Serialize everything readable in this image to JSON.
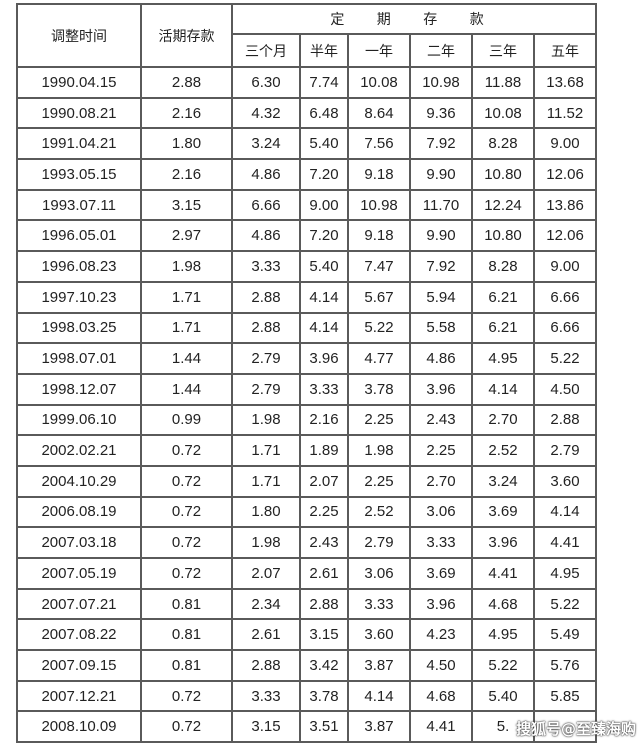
{
  "table": {
    "headers": {
      "date": "调整时间",
      "demand": "活期存款",
      "fixed_group": "定 期 存 款",
      "terms": [
        "三个月",
        "半年",
        "一年",
        "二年",
        "三年",
        "五年"
      ]
    },
    "rows": [
      [
        "1990.04.15",
        "2.88",
        "6.30",
        "7.74",
        "10.08",
        "10.98",
        "11.88",
        "13.68"
      ],
      [
        "1990.08.21",
        "2.16",
        "4.32",
        "6.48",
        "8.64",
        "9.36",
        "10.08",
        "11.52"
      ],
      [
        "1991.04.21",
        "1.80",
        "3.24",
        "5.40",
        "7.56",
        "7.92",
        "8.28",
        "9.00"
      ],
      [
        "1993.05.15",
        "2.16",
        "4.86",
        "7.20",
        "9.18",
        "9.90",
        "10.80",
        "12.06"
      ],
      [
        "1993.07.11",
        "3.15",
        "6.66",
        "9.00",
        "10.98",
        "11.70",
        "12.24",
        "13.86"
      ],
      [
        "1996.05.01",
        "2.97",
        "4.86",
        "7.20",
        "9.18",
        "9.90",
        "10.80",
        "12.06"
      ],
      [
        "1996.08.23",
        "1.98",
        "3.33",
        "5.40",
        "7.47",
        "7.92",
        "8.28",
        "9.00"
      ],
      [
        "1997.10.23",
        "1.71",
        "2.88",
        "4.14",
        "5.67",
        "5.94",
        "6.21",
        "6.66"
      ],
      [
        "1998.03.25",
        "1.71",
        "2.88",
        "4.14",
        "5.22",
        "5.58",
        "6.21",
        "6.66"
      ],
      [
        "1998.07.01",
        "1.44",
        "2.79",
        "3.96",
        "4.77",
        "4.86",
        "4.95",
        "5.22"
      ],
      [
        "1998.12.07",
        "1.44",
        "2.79",
        "3.33",
        "3.78",
        "3.96",
        "4.14",
        "4.50"
      ],
      [
        "1999.06.10",
        "0.99",
        "1.98",
        "2.16",
        "2.25",
        "2.43",
        "2.70",
        "2.88"
      ],
      [
        "2002.02.21",
        "0.72",
        "1.71",
        "1.89",
        "1.98",
        "2.25",
        "2.52",
        "2.79"
      ],
      [
        "2004.10.29",
        "0.72",
        "1.71",
        "2.07",
        "2.25",
        "2.70",
        "3.24",
        "3.60"
      ],
      [
        "2006.08.19",
        "0.72",
        "1.80",
        "2.25",
        "2.52",
        "3.06",
        "3.69",
        "4.14"
      ],
      [
        "2007.03.18",
        "0.72",
        "1.98",
        "2.43",
        "2.79",
        "3.33",
        "3.96",
        "4.41"
      ],
      [
        "2007.05.19",
        "0.72",
        "2.07",
        "2.61",
        "3.06",
        "3.69",
        "4.41",
        "4.95"
      ],
      [
        "2007.07.21",
        "0.81",
        "2.34",
        "2.88",
        "3.33",
        "3.96",
        "4.68",
        "5.22"
      ],
      [
        "2007.08.22",
        "0.81",
        "2.61",
        "3.15",
        "3.60",
        "4.23",
        "4.95",
        "5.49"
      ],
      [
        "2007.09.15",
        "0.81",
        "2.88",
        "3.42",
        "3.87",
        "4.50",
        "5.22",
        "5.76"
      ],
      [
        "2007.12.21",
        "0.72",
        "3.33",
        "3.78",
        "4.14",
        "4.68",
        "5.40",
        "5.85"
      ],
      [
        "2008.10.09",
        "0.72",
        "3.15",
        "3.51",
        "3.87",
        "4.41",
        "5.",
        ""
      ]
    ]
  },
  "watermark": "搜狐号@至臻海购"
}
